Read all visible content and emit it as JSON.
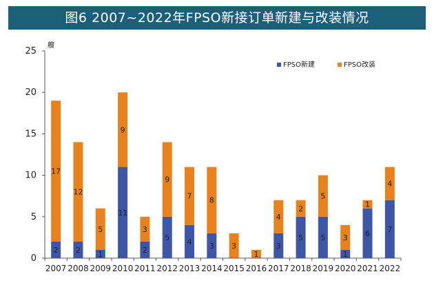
{
  "title": "图6 2007~2022年FPSO新接订单新建与改装情况",
  "chart_data": {
    "type": "bar",
    "stacked": true,
    "unit_label": "艘",
    "categories": [
      "2007",
      "2008",
      "2009",
      "2010",
      "2011",
      "2012",
      "2013",
      "2014",
      "2015",
      "2016",
      "2017",
      "2018",
      "2019",
      "2020",
      "2021",
      "2022"
    ],
    "series": [
      {
        "name": "FPSO新建",
        "color": "#3d56a6",
        "values": [
          2,
          2,
          1,
          11,
          2,
          5,
          4,
          3,
          0,
          0,
          3,
          5,
          5,
          1,
          6,
          7
        ]
      },
      {
        "name": "FPSO改装",
        "color": "#e8821e",
        "values": [
          17,
          12,
          5,
          9,
          3,
          9,
          7,
          8,
          3,
          1,
          4,
          2,
          5,
          3,
          1,
          4
        ]
      }
    ],
    "ylim": [
      0,
      25
    ],
    "yticks": [
      0,
      5,
      10,
      15,
      20,
      25
    ],
    "legend_position": "top-right",
    "grid": false
  }
}
